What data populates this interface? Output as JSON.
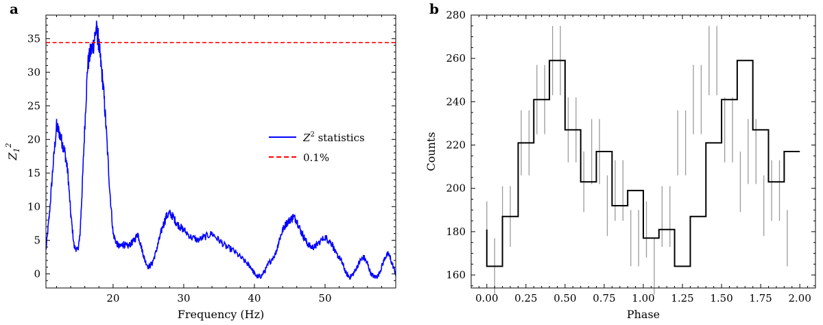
{
  "panels": {
    "a": {
      "label": "a"
    },
    "b": {
      "label": "b"
    }
  },
  "chart_data": [
    {
      "type": "line",
      "panel": "a",
      "title": "",
      "xlabel": "Frequency (Hz)",
      "ylabel": "Z₁²",
      "xlim": [
        10.5,
        60
      ],
      "ylim": [
        -2.1,
        38.5
      ],
      "xticks": [
        20,
        30,
        40,
        50
      ],
      "yticks": [
        0,
        5,
        10,
        15,
        20,
        25,
        30,
        35
      ],
      "series": [
        {
          "name": "Z² statistics",
          "color": "#0000ff",
          "x": [
            10.5,
            11.0,
            11.5,
            12.0,
            12.4,
            12.8,
            13.2,
            13.6,
            14.0,
            14.5,
            15.0,
            15.3,
            15.6,
            16.0,
            16.4,
            16.8,
            17.2,
            17.6,
            17.9,
            18.2,
            18.6,
            19.0,
            19.5,
            20.0,
            20.5,
            21.0,
            21.5,
            22.0,
            22.5,
            23.0,
            23.5,
            24.0,
            24.5,
            25.0,
            25.5,
            26.0,
            26.5,
            27.0,
            27.5,
            28.0,
            28.5,
            29.0,
            29.5,
            30.0,
            31.0,
            32.0,
            33.0,
            34.0,
            35.0,
            36.0,
            37.0,
            38.0,
            39.0,
            39.5,
            40.0,
            40.5,
            41.0,
            41.5,
            42.0,
            43.0,
            43.5,
            44.0,
            44.5,
            45.0,
            45.5,
            46.0,
            46.5,
            47.0,
            47.5,
            48.0,
            48.5,
            49.0,
            50.0,
            50.5,
            51.0,
            51.5,
            52.0,
            52.5,
            53.0,
            53.5,
            54.0,
            54.5,
            55.0,
            55.5,
            56.0,
            56.5,
            57.0,
            57.5,
            58.0,
            58.5,
            59.0,
            59.5,
            60.0
          ],
          "y": [
            3.5,
            9.0,
            16.0,
            22.0,
            21.0,
            19.5,
            18.0,
            15.0,
            9.0,
            4.0,
            3.5,
            5.5,
            12.0,
            22.0,
            31.0,
            33.0,
            34.0,
            36.5,
            35.0,
            32.0,
            28.0,
            22.0,
            13.0,
            6.0,
            4.5,
            4.0,
            4.5,
            4.0,
            4.5,
            5.0,
            6.0,
            4.0,
            2.0,
            1.0,
            1.5,
            3.0,
            5.0,
            7.0,
            8.5,
            9.0,
            8.5,
            7.5,
            7.0,
            6.5,
            5.5,
            5.0,
            5.5,
            6.0,
            5.0,
            4.0,
            3.5,
            2.5,
            1.5,
            1.0,
            0.0,
            -0.5,
            -0.3,
            0.5,
            1.5,
            3.0,
            5.0,
            6.5,
            7.5,
            8.0,
            8.5,
            8.0,
            6.5,
            5.5,
            4.5,
            4.0,
            4.0,
            4.5,
            5.5,
            5.0,
            4.5,
            3.0,
            2.5,
            1.5,
            0.0,
            -0.5,
            0.0,
            1.0,
            2.0,
            2.5,
            1.5,
            0.0,
            -0.5,
            -0.3,
            1.0,
            2.5,
            3.0,
            1.5,
            0.0
          ]
        },
        {
          "name": "0.1%",
          "color": "#ff0000",
          "style": "dashed",
          "value": 34.4
        }
      ],
      "legend": {
        "placement": "center-right",
        "entries": [
          "Z² statistics",
          "0.1%"
        ]
      }
    },
    {
      "type": "step",
      "panel": "b",
      "title": "",
      "xlabel": "Phase",
      "ylabel": "Counts",
      "xlim": [
        -0.1,
        2.1
      ],
      "ylim": [
        154,
        280
      ],
      "xticks": [
        "0.00",
        "0.25",
        "0.50",
        "0.75",
        "1.00",
        "1.25",
        "1.50",
        "1.75",
        "2.00"
      ],
      "yticks": [
        160,
        180,
        200,
        220,
        240,
        260,
        280
      ],
      "bin_width": 0.1,
      "phase_centers": [
        0.05,
        0.15,
        0.25,
        0.35,
        0.45,
        0.55,
        0.65,
        0.75,
        0.85,
        0.95,
        1.05,
        1.15,
        1.25,
        1.35,
        1.45,
        1.55,
        1.65,
        1.75,
        1.85,
        1.95
      ],
      "values": [
        164,
        187,
        221,
        241,
        259,
        227,
        203,
        217,
        192,
        199,
        177,
        181,
        164,
        187,
        221,
        241,
        259,
        227,
        203,
        217
      ],
      "error_x": [
        0.0,
        0.05,
        0.1,
        0.15,
        0.22,
        0.27,
        0.32,
        0.37,
        0.42,
        0.47,
        0.52,
        0.57,
        0.62,
        0.67,
        0.72,
        0.77,
        0.82,
        0.87,
        0.92,
        0.97,
        1.02,
        1.07,
        1.12,
        1.17,
        1.22,
        1.27,
        1.32,
        1.37,
        1.42,
        1.47,
        1.52,
        1.57,
        1.62,
        1.67,
        1.72,
        1.77,
        1.82,
        1.87,
        1.92
      ],
      "error_y": [
        181,
        164,
        187,
        187,
        221,
        221,
        241,
        241,
        259,
        259,
        227,
        227,
        203,
        217,
        217,
        192,
        199,
        199,
        177,
        177,
        181,
        164,
        187,
        187,
        221,
        221,
        241,
        241,
        259,
        259,
        227,
        227,
        203,
        217,
        217,
        192,
        199,
        199,
        177
      ],
      "error_err": [
        13,
        13,
        14,
        14,
        15,
        15,
        16,
        16,
        16,
        16,
        15,
        15,
        14,
        15,
        15,
        14,
        14,
        14,
        13,
        13,
        13,
        13,
        14,
        14,
        15,
        15,
        16,
        16,
        16,
        16,
        15,
        15,
        14,
        15,
        15,
        14,
        14,
        14,
        13
      ]
    }
  ]
}
